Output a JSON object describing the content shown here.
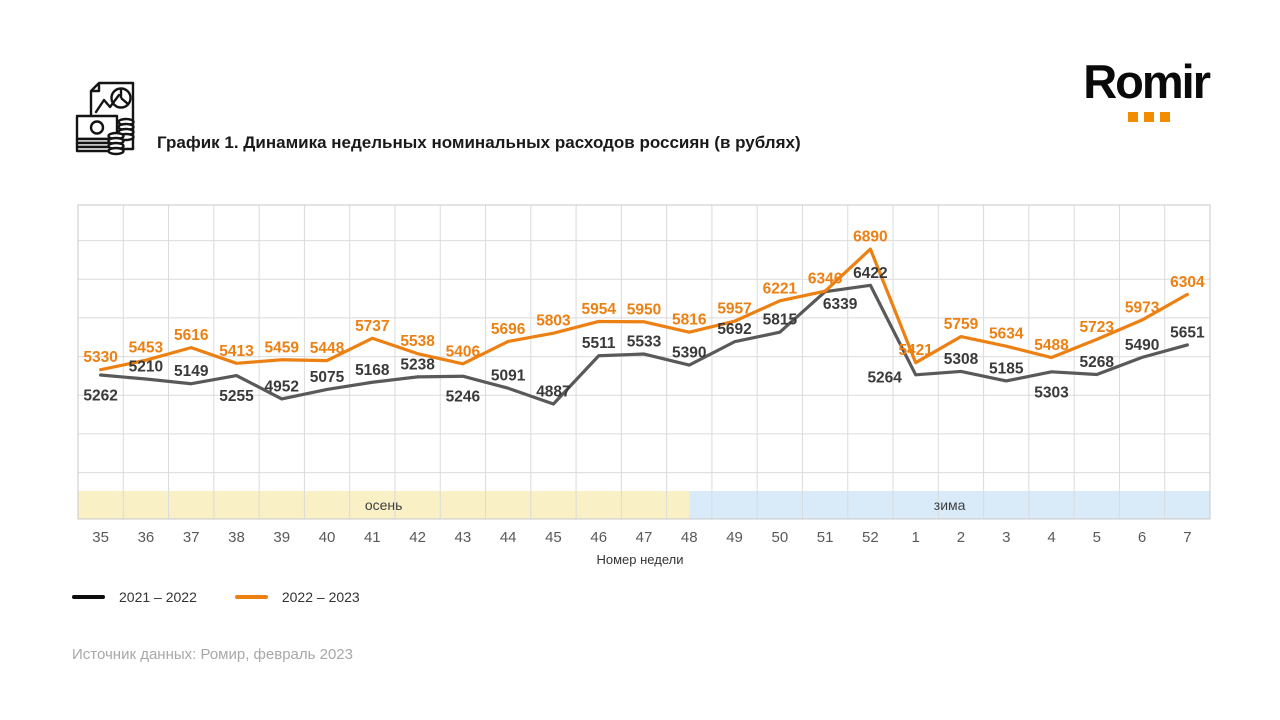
{
  "header": {
    "title": "График 1. Динамика недельных номинальных расходов россиян (в рублях)",
    "icon": "document-money-chart-icon",
    "logo": {
      "text": "Romir",
      "dot_color": "#F28C00"
    }
  },
  "footer": {
    "source": "Источник данных: Ромир, февраль 2023"
  },
  "legend": {
    "items": [
      {
        "label": "2021 – 2022",
        "color": "#0d0d0d"
      },
      {
        "label": "2022 – 2023",
        "color": "#ED8012"
      }
    ]
  },
  "chart_data": {
    "type": "line",
    "title": "График 1. Динамика недельных номинальных расходов россиян (в рублях)",
    "xlabel": "Номер недели",
    "ylabel": "",
    "categories": [
      "35",
      "36",
      "37",
      "38",
      "39",
      "40",
      "41",
      "42",
      "43",
      "44",
      "45",
      "46",
      "47",
      "48",
      "49",
      "50",
      "51",
      "52",
      "1",
      "2",
      "3",
      "4",
      "5",
      "6",
      "7"
    ],
    "ylim": [
      3400,
      7460
    ],
    "grid": {
      "h_step": 500,
      "color": "#dbdbdb",
      "border_color": "#c9c9c9",
      "show": true
    },
    "bands": [
      {
        "label": "осень",
        "start": 0,
        "end": 13.5,
        "color": "#FAF0C6"
      },
      {
        "label": "зима",
        "start": 13.5,
        "end": 25,
        "color": "#D9EAF8"
      }
    ],
    "series": [
      {
        "name": "2021 – 2022",
        "color": "#595959",
        "label_color": "#3a3a3a",
        "values": [
          5262,
          5210,
          5149,
          5255,
          4952,
          5075,
          5168,
          5238,
          5246,
          5091,
          4887,
          5511,
          5533,
          5390,
          5692,
          5815,
          6339,
          6422,
          5264,
          5308,
          5185,
          5303,
          5268,
          5490,
          5651
        ],
        "label_pos": [
          "below",
          "above",
          "above",
          "below",
          "above",
          "above",
          "above",
          "above",
          "below",
          "above",
          "above",
          "above",
          "above",
          "above",
          "above",
          "above",
          "belowright",
          "above",
          "left",
          "above",
          "above",
          "below",
          "above",
          "above",
          "above"
        ]
      },
      {
        "name": "2022 – 2023",
        "color": "#ED8012",
        "label_color": "#ED8012",
        "values": [
          5330,
          5453,
          5616,
          5413,
          5459,
          5448,
          5737,
          5538,
          5406,
          5696,
          5803,
          5954,
          5950,
          5816,
          5957,
          6221,
          6346,
          6890,
          5421,
          5759,
          5634,
          5488,
          5723,
          5973,
          6304
        ],
        "label_pos": [
          "above",
          "above",
          "above",
          "above",
          "above",
          "above",
          "above",
          "above",
          "above",
          "above",
          "above",
          "above",
          "above",
          "above",
          "above",
          "above",
          "above",
          "above",
          "above",
          "above",
          "above",
          "above",
          "above",
          "above",
          "above"
        ]
      }
    ],
    "legend_position": "bottom-left"
  }
}
